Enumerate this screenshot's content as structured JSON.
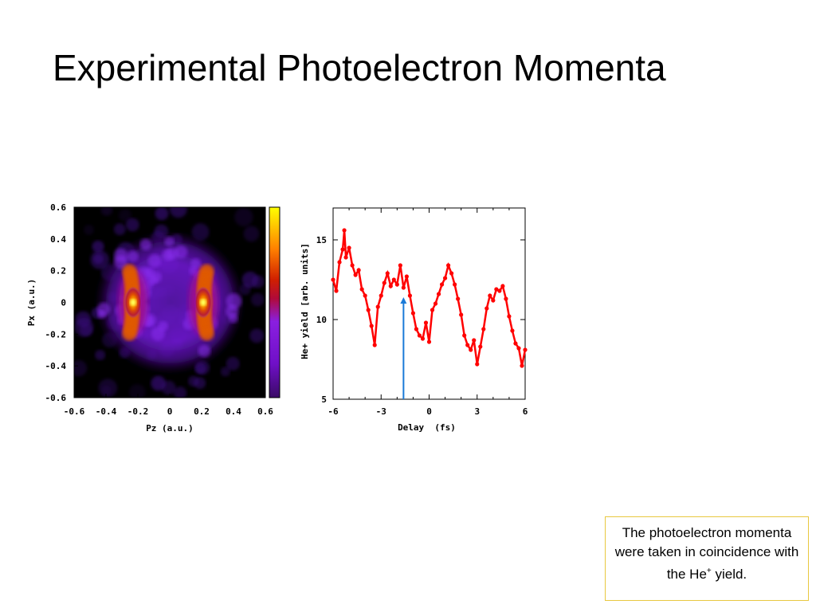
{
  "slide": {
    "title": "Experimental Photoelectron Momenta",
    "caption_main": "The photoelectron momenta were taken in coincidence with the He",
    "caption_sup": "+",
    "caption_end": " yield."
  },
  "chart_data": [
    {
      "type": "heatmap",
      "title": "",
      "xlabel": "Pz (a.u.)",
      "ylabel": "Px (a.u.)",
      "xlim": [
        -0.6,
        0.6
      ],
      "ylim": [
        -0.6,
        0.6
      ],
      "x_ticks": [
        "-0.6",
        "-0.4",
        "-0.2",
        "0",
        "0.2",
        "0.4",
        "0.6"
      ],
      "y_ticks": [
        "-0.6",
        "-0.4",
        "-0.2",
        "0",
        "0.2",
        "0.4",
        "0.6"
      ],
      "colormap": [
        "#000000",
        "#3a0a66",
        "#8a1fe0",
        "#b00a3a",
        "#e04a00",
        "#ffa000",
        "#ffff00"
      ],
      "features": [
        {
          "name": "lobe",
          "pz": -0.23,
          "px": 0.0,
          "intensity": 1.0
        },
        {
          "name": "lobe",
          "pz": 0.21,
          "px": 0.0,
          "intensity": 1.0
        },
        {
          "name": "ring",
          "radius": 0.38,
          "intensity": 0.35
        }
      ]
    },
    {
      "type": "line",
      "title": "",
      "xlabel": "Delay  (fs)",
      "ylabel": "He+ yield [arb. units]",
      "xlim": [
        -6,
        6
      ],
      "ylim": [
        5,
        17
      ],
      "x_ticks": [
        "-6",
        "-3",
        "0",
        "3",
        "6"
      ],
      "y_ticks": [
        "5",
        "10",
        "15"
      ],
      "series": [
        {
          "color": "#ff0000",
          "x": [
            -6.0,
            -5.8,
            -5.6,
            -5.4,
            -5.3,
            -5.2,
            -5.0,
            -4.8,
            -4.6,
            -4.4,
            -4.2,
            -4.0,
            -3.8,
            -3.6,
            -3.4,
            -3.2,
            -3.0,
            -2.8,
            -2.6,
            -2.4,
            -2.2,
            -2.0,
            -1.8,
            -1.6,
            -1.4,
            -1.2,
            -1.0,
            -0.8,
            -0.6,
            -0.4,
            -0.2,
            0.0,
            0.2,
            0.4,
            0.6,
            0.8,
            1.0,
            1.2,
            1.4,
            1.6,
            1.8,
            2.0,
            2.2,
            2.4,
            2.6,
            2.8,
            3.0,
            3.2,
            3.4,
            3.6,
            3.8,
            4.0,
            4.2,
            4.4,
            4.6,
            4.8,
            5.0,
            5.2,
            5.4,
            5.6,
            5.8,
            6.0
          ],
          "y": [
            12.5,
            11.8,
            13.6,
            14.4,
            15.6,
            13.9,
            14.5,
            13.4,
            12.8,
            13.1,
            11.9,
            11.5,
            10.6,
            9.6,
            8.4,
            10.8,
            11.5,
            12.3,
            12.9,
            12.1,
            12.5,
            12.2,
            13.4,
            12.0,
            12.7,
            11.5,
            10.4,
            9.4,
            9.0,
            8.8,
            9.8,
            8.6,
            10.6,
            11.0,
            11.6,
            12.2,
            12.6,
            13.4,
            12.9,
            12.2,
            11.3,
            10.3,
            9.0,
            8.4,
            8.1,
            8.7,
            7.2,
            8.3,
            9.4,
            10.7,
            11.5,
            11.2,
            11.9,
            11.8,
            12.1,
            11.3,
            10.2,
            9.3,
            8.5,
            8.2,
            7.1,
            8.1
          ]
        }
      ],
      "annotations": [
        {
          "type": "arrow",
          "color": "#1a7ad8",
          "x": -1.6,
          "y_from": 5,
          "y_to": 11.4
        }
      ]
    }
  ]
}
